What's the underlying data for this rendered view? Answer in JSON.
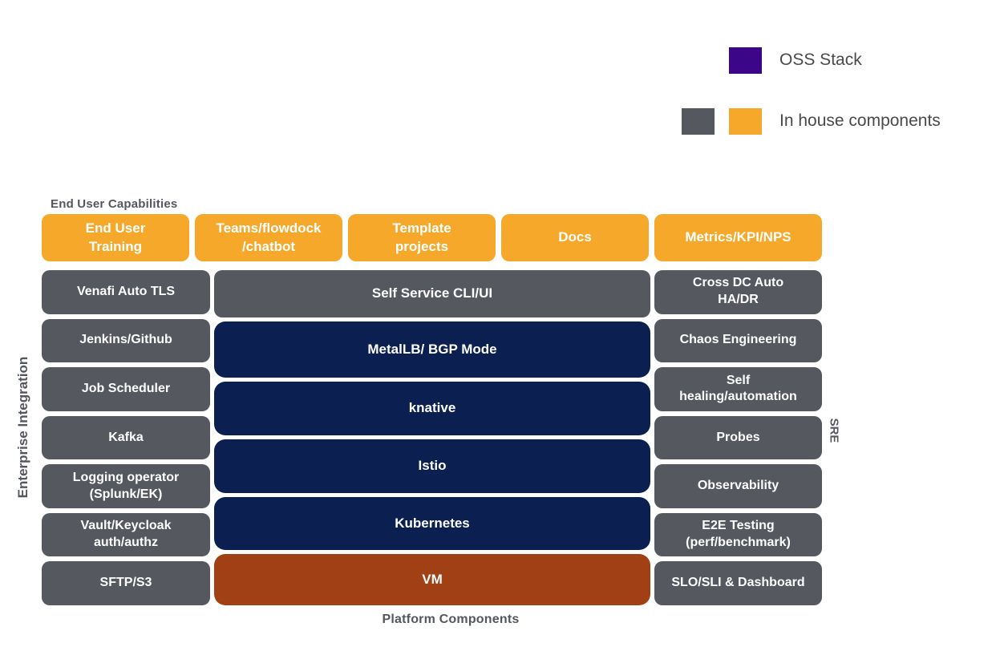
{
  "colors": {
    "orange": "#F5A829",
    "gray": "#55585E",
    "navy": "#0B2050",
    "rust": "#A04014",
    "purple": "#3B0788",
    "label_text": "#54575C",
    "box_text": "#FFFFFF",
    "legend_text": "#4A4A4A"
  },
  "legend": {
    "items": [
      {
        "label": "OSS Stack",
        "swatches": [
          "#3B0788"
        ]
      },
      {
        "label": "In house components",
        "swatches": [
          "#55585E",
          "#F5A829"
        ]
      }
    ]
  },
  "labels": {
    "end_user_capabilities": "End User Capabilities",
    "platform_components": "Platform Components",
    "enterprise_integration": "Enterprise Integration",
    "sre": "SRE"
  },
  "top_row": [
    {
      "label": "End User\nTraining"
    },
    {
      "label": "Teams/flowdock\n/chatbot"
    },
    {
      "label": "Template\nprojects"
    },
    {
      "label": "Docs"
    },
    {
      "label": "Metrics/KPI/NPS"
    }
  ],
  "left_column": [
    {
      "label": "Venafi Auto TLS"
    },
    {
      "label": "Jenkins/Github"
    },
    {
      "label": "Job Scheduler"
    },
    {
      "label": "Kafka"
    },
    {
      "label": "Logging operator\n(Splunk/EK)"
    },
    {
      "label": "Vault/Keycloak\nauth/authz"
    },
    {
      "label": "SFTP/S3"
    }
  ],
  "middle_column": [
    {
      "label": "Self Service CLI/UI",
      "type": "in-house"
    },
    {
      "label": "MetalLB/ BGP Mode",
      "type": "oss"
    },
    {
      "label": "knative",
      "type": "oss"
    },
    {
      "label": "Istio",
      "type": "oss"
    },
    {
      "label": "Kubernetes",
      "type": "oss"
    },
    {
      "label": "VM",
      "type": "vm"
    }
  ],
  "right_column": [
    {
      "label": "Cross DC Auto\nHA/DR"
    },
    {
      "label": "Chaos Engineering"
    },
    {
      "label": "Self\nhealing/automation"
    },
    {
      "label": "Probes"
    },
    {
      "label": "Observability"
    },
    {
      "label": "E2E Testing\n(perf/benchmark)"
    },
    {
      "label": "SLO/SLI & Dashboard"
    }
  ]
}
